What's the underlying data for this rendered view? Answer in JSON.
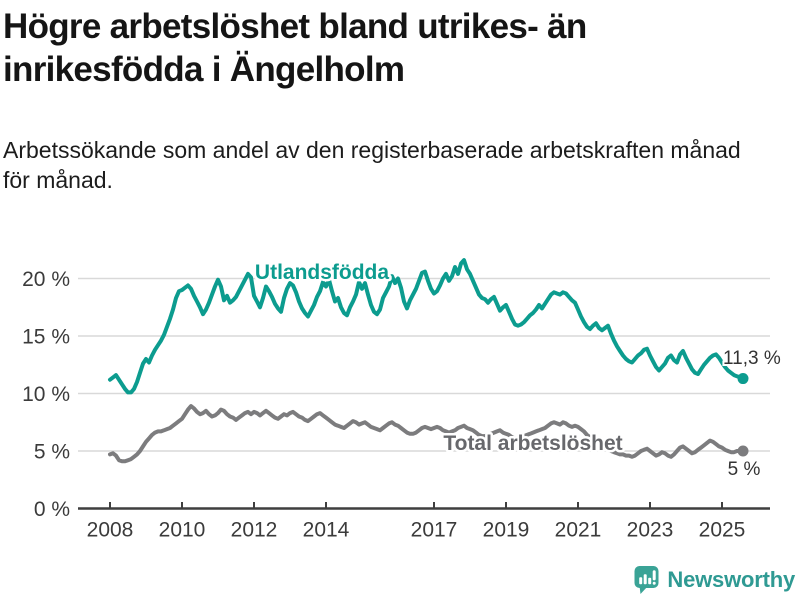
{
  "header": {
    "title": "Högre arbetslöshet bland utrikes- än\ninrikesfödda i Ängelholm",
    "subtitle": "Arbetssökande som andel av den registerbaserade arbetskraften månad\nför månad."
  },
  "footer": {
    "brand": "Newsworthy",
    "brand_icon": "bar-chart-speech-bubble",
    "brand_text_color": "#2f9a93",
    "brand_icon_color": "#3aa396"
  },
  "chart_data": {
    "type": "line",
    "title": "Högre arbetslöshet bland utrikes- än\ninrikesfödda i Ängelholm",
    "subtitle": "Arbetssökande som andel av den registerbaserade arbetskraften månad\nför månad.",
    "x_unit": "month",
    "x_start": "2008-01",
    "x_end": "2025-08",
    "x_tick_years": [
      2008,
      2010,
      2012,
      2014,
      2017,
      2019,
      2021,
      2023,
      2025
    ],
    "y_ticks": [
      0,
      5,
      10,
      15,
      20
    ],
    "y_tick_suffix": " %",
    "ylim": [
      0,
      22.5
    ],
    "grid": "horizontal",
    "legend": "inline-labels",
    "colors": {
      "gridline": "#d9d9d9",
      "axis": "#3f3f3f",
      "tick_labels": "#3b3b3b",
      "annotation": "#333333"
    },
    "series": [
      {
        "name": "Utlandsfödda",
        "color": "#0c9c8f",
        "label_color": "#0c9c8f",
        "end_label": "11,3 %",
        "end_value": 11.3,
        "values": [
          11.2,
          11.4,
          11.6,
          11.2,
          10.8,
          10.4,
          10.1,
          10.1,
          10.4,
          11.0,
          11.8,
          12.6,
          13.0,
          12.7,
          13.3,
          13.8,
          14.2,
          14.6,
          15.1,
          15.8,
          16.5,
          17.3,
          18.3,
          18.9,
          19.0,
          19.2,
          19.4,
          19.1,
          18.5,
          18.0,
          17.5,
          16.9,
          17.3,
          17.9,
          18.6,
          19.3,
          19.9,
          19.3,
          18.1,
          18.5,
          17.9,
          18.1,
          18.4,
          18.9,
          19.4,
          19.9,
          20.4,
          20.1,
          18.5,
          18.0,
          17.5,
          18.3,
          19.3,
          18.9,
          18.4,
          17.8,
          17.4,
          17.1,
          18.3,
          19.1,
          19.6,
          19.4,
          18.8,
          18.0,
          17.4,
          17.0,
          16.7,
          17.2,
          17.7,
          18.4,
          18.9,
          19.7,
          19.3,
          19.9,
          18.9,
          18.0,
          18.3,
          17.5,
          17.0,
          16.8,
          17.5,
          18.0,
          18.6,
          19.7,
          19.1,
          19.6,
          18.6,
          17.7,
          17.1,
          16.9,
          17.3,
          18.3,
          18.8,
          19.3,
          20.2,
          19.6,
          20.0,
          19.2,
          18.0,
          17.4,
          18.1,
          18.6,
          19.1,
          19.8,
          20.5,
          20.6,
          19.8,
          19.1,
          18.7,
          18.9,
          19.4,
          20.0,
          20.4,
          19.8,
          20.2,
          21.0,
          20.4,
          21.3,
          21.6,
          20.8,
          20.4,
          19.8,
          19.2,
          18.6,
          18.3,
          18.2,
          17.9,
          18.2,
          18.4,
          17.8,
          17.2,
          17.5,
          17.7,
          17.1,
          16.5,
          16.0,
          15.9,
          16.0,
          16.2,
          16.5,
          16.8,
          17.0,
          17.3,
          17.7,
          17.4,
          17.8,
          18.2,
          18.6,
          18.8,
          18.7,
          18.6,
          18.8,
          18.7,
          18.4,
          18.1,
          17.9,
          17.3,
          16.7,
          16.2,
          15.8,
          15.6,
          15.9,
          16.1,
          15.7,
          15.5,
          15.7,
          15.9,
          15.2,
          14.6,
          14.1,
          13.7,
          13.3,
          13.0,
          12.8,
          12.7,
          13.0,
          13.3,
          13.5,
          13.8,
          13.9,
          13.3,
          12.8,
          12.3,
          12.0,
          12.3,
          12.6,
          13.1,
          13.3,
          12.9,
          12.7,
          13.4,
          13.7,
          13.1,
          12.6,
          12.1,
          11.8,
          11.7,
          12.1,
          12.5,
          12.8,
          13.1,
          13.3,
          13.4,
          13.1,
          12.7,
          12.3,
          12.0,
          11.8,
          11.6,
          11.5,
          11.4,
          11.3
        ]
      },
      {
        "name": "Total arbetslöshet",
        "color": "#7c7c7e",
        "label_color": "#67686c",
        "end_label": "5 %",
        "end_value": 5,
        "values": [
          4.7,
          4.8,
          4.6,
          4.2,
          4.1,
          4.1,
          4.2,
          4.3,
          4.5,
          4.7,
          5.0,
          5.4,
          5.8,
          6.1,
          6.4,
          6.6,
          6.7,
          6.7,
          6.8,
          6.9,
          7.0,
          7.2,
          7.4,
          7.6,
          7.8,
          8.2,
          8.6,
          8.9,
          8.7,
          8.4,
          8.2,
          8.3,
          8.5,
          8.2,
          8.0,
          8.1,
          8.3,
          8.6,
          8.5,
          8.2,
          8.0,
          7.9,
          7.7,
          7.9,
          8.1,
          8.3,
          8.4,
          8.2,
          8.4,
          8.3,
          8.1,
          8.3,
          8.5,
          8.3,
          8.1,
          7.9,
          7.8,
          8.0,
          8.2,
          8.1,
          8.3,
          8.4,
          8.2,
          8.0,
          7.9,
          7.7,
          7.6,
          7.8,
          8.0,
          8.2,
          8.3,
          8.1,
          7.9,
          7.7,
          7.5,
          7.3,
          7.2,
          7.1,
          7.0,
          7.2,
          7.4,
          7.6,
          7.5,
          7.3,
          7.4,
          7.5,
          7.3,
          7.1,
          7.0,
          6.9,
          6.8,
          7.0,
          7.2,
          7.4,
          7.5,
          7.3,
          7.2,
          7.0,
          6.8,
          6.6,
          6.5,
          6.5,
          6.6,
          6.8,
          7.0,
          7.1,
          7.0,
          6.9,
          7.0,
          7.1,
          7.0,
          6.8,
          6.7,
          6.6,
          6.7,
          6.8,
          7.0,
          7.1,
          7.2,
          7.0,
          6.9,
          6.8,
          6.6,
          6.4,
          6.3,
          6.3,
          6.4,
          6.5,
          6.6,
          6.7,
          6.8,
          6.6,
          6.5,
          6.4,
          6.2,
          6.1,
          6.1,
          6.2,
          6.3,
          6.4,
          6.5,
          6.6,
          6.7,
          6.8,
          6.9,
          7.0,
          7.2,
          7.4,
          7.5,
          7.4,
          7.3,
          7.5,
          7.4,
          7.2,
          7.1,
          7.2,
          7.1,
          6.9,
          6.7,
          6.4,
          6.2,
          6.0,
          5.8,
          5.6,
          5.4,
          5.2,
          5.1,
          5.0,
          4.9,
          4.8,
          4.7,
          4.7,
          4.6,
          4.6,
          4.5,
          4.6,
          4.8,
          5.0,
          5.1,
          5.2,
          5.0,
          4.8,
          4.6,
          4.7,
          4.9,
          4.8,
          4.6,
          4.5,
          4.7,
          5.0,
          5.3,
          5.4,
          5.2,
          5.0,
          4.8,
          4.9,
          5.1,
          5.3,
          5.5,
          5.7,
          5.9,
          5.8,
          5.6,
          5.4,
          5.3,
          5.1,
          5.0,
          4.9,
          4.9,
          5.0,
          5.0,
          5.0
        ]
      }
    ]
  }
}
